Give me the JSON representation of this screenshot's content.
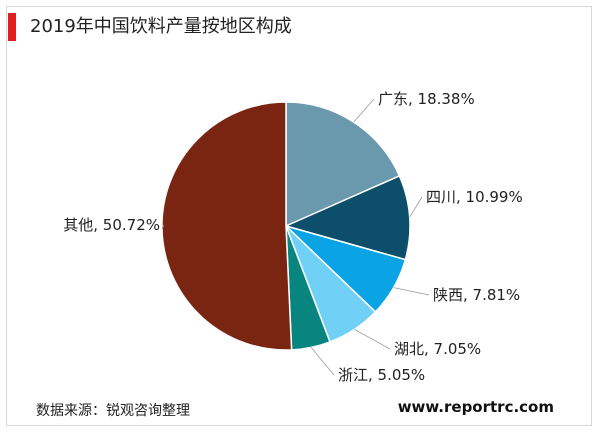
{
  "title": "2019年中国饮料产量按地区构成",
  "source": "数据来源：锐观咨询整理",
  "website": "www.reportrc.com",
  "colors": {
    "title_accent": "#e02020"
  },
  "chart_data": {
    "type": "pie",
    "title": "2019年中国饮料产量按地区构成",
    "slices": [
      {
        "name": "广东",
        "value": 18.38,
        "label": "广东, 18.38%",
        "color": "#6a98ad"
      },
      {
        "name": "四川",
        "value": 10.99,
        "label": "四川, 10.99%",
        "color": "#0d4f6b"
      },
      {
        "name": "陕西",
        "value": 7.81,
        "label": "陕西, 7.81%",
        "color": "#0aa3e3"
      },
      {
        "name": "湖北",
        "value": 7.05,
        "label": "湖北, 7.05%",
        "color": "#70d0f5"
      },
      {
        "name": "浙江",
        "value": 5.05,
        "label": "浙江, 5.05%",
        "color": "#08857f"
      },
      {
        "name": "其他",
        "value": 50.72,
        "label": "其他, 50.72%",
        "color": "#7a2512"
      }
    ]
  }
}
